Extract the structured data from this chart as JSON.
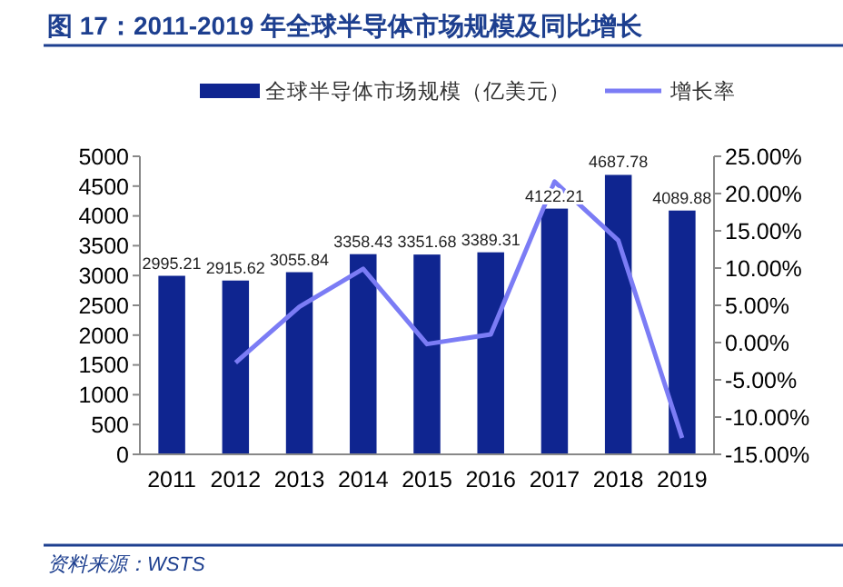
{
  "chart_data": {
    "type": "bar",
    "title": "图 17：2011-2019 年全球半导体市场规模及同比增长",
    "categories": [
      "2011",
      "2012",
      "2013",
      "2014",
      "2015",
      "2016",
      "2017",
      "2018",
      "2019"
    ],
    "series": [
      {
        "name": "全球半导体市场规模（亿美元）",
        "color": "#0f2590",
        "values": [
          2995.21,
          2915.62,
          3055.84,
          3358.43,
          3351.68,
          3389.31,
          4122.21,
          4687.78,
          4089.88
        ]
      },
      {
        "name": "增长率",
        "type": "line",
        "axis": "y2",
        "color": "#7b7cf5",
        "values": [
          null,
          -2.7,
          4.8,
          9.9,
          -0.2,
          1.1,
          21.6,
          13.7,
          -12.8
        ]
      }
    ],
    "ylim": [
      0,
      5000
    ],
    "yticks": [
      0,
      500,
      1000,
      1500,
      2000,
      2500,
      3000,
      3500,
      4000,
      4500,
      5000
    ],
    "y2lim": [
      -15,
      25
    ],
    "y2ticks": [
      {
        "value": -15,
        "label": "-15.00%"
      },
      {
        "value": -10,
        "label": "-10.00%"
      },
      {
        "value": -5,
        "label": "-5.00%"
      },
      {
        "value": 0,
        "label": "0.00%"
      },
      {
        "value": 5,
        "label": "5.00%"
      },
      {
        "value": 10,
        "label": "10.00%"
      },
      {
        "value": 15,
        "label": "15.00%"
      },
      {
        "value": 20,
        "label": "20.00%"
      },
      {
        "value": 25,
        "label": "25.00%"
      }
    ],
    "value_labels": [
      "2995.21",
      "2915.62",
      "3055.84",
      "3358.43",
      "3351.68",
      "3389.31",
      "4122.21",
      "4687.78",
      "4089.88"
    ],
    "legend": "top",
    "grid": false,
    "marker": "none",
    "annotations": [
      "资料来源：WSTS"
    ]
  }
}
